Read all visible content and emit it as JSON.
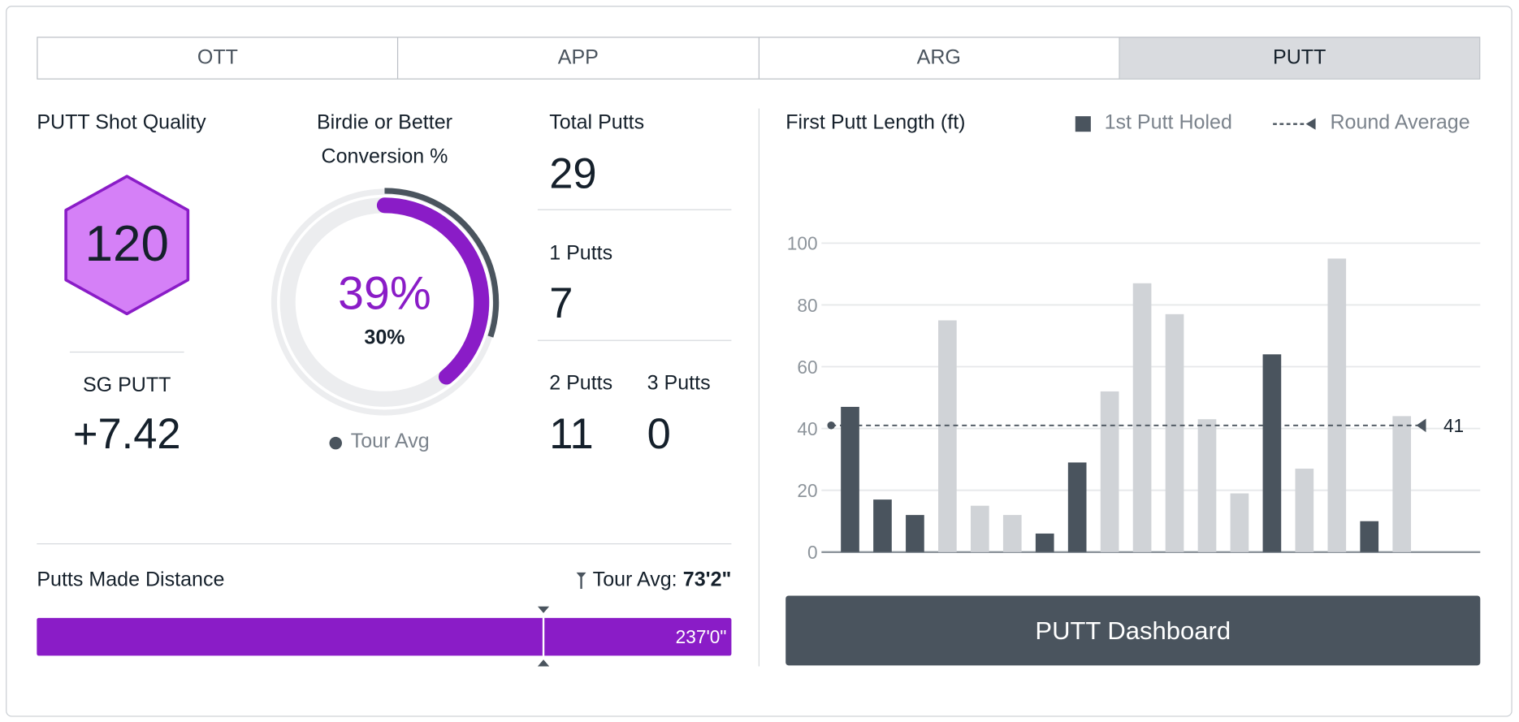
{
  "tabs": [
    {
      "label": "OTT"
    },
    {
      "label": "APP"
    },
    {
      "label": "ARG"
    },
    {
      "label": "PUTT",
      "active": true
    }
  ],
  "shot_quality": {
    "title": "PUTT Shot Quality",
    "value": "120",
    "sg_label": "SG PUTT",
    "sg_value": "+7.42"
  },
  "conversion": {
    "title_line1": "Birdie or Better",
    "title_line2": "Conversion %",
    "value": "39%",
    "tour_value": "30%",
    "value_pct": 39,
    "tour_pct": 30,
    "legend": "Tour Avg"
  },
  "putts": {
    "total_label": "Total Putts",
    "total": "29",
    "one_label": "1 Putts",
    "one": "7",
    "two_label": "2 Putts",
    "two": "11",
    "three_label": "3 Putts",
    "three": "0"
  },
  "made_distance": {
    "title": "Putts Made Distance",
    "tour_label": "Tour Avg:",
    "tour_value": "73'2\"",
    "value": "237'0\"",
    "tour_marker_fraction": 0.73
  },
  "chart_data": {
    "type": "bar",
    "title": "First Putt Length (ft)",
    "legend": [
      {
        "name": "1st Putt Holed",
        "color": "#4a545e"
      },
      {
        "name": "Round Average",
        "color": "#4a545e"
      }
    ],
    "legend_placement": "top-right",
    "ylim": [
      0,
      100
    ],
    "yticks": [
      "0",
      "20",
      "40",
      "60",
      "80",
      "100"
    ],
    "values": [
      47,
      17,
      12,
      75,
      15,
      12,
      6,
      29,
      52,
      87,
      77,
      43,
      19,
      64,
      27,
      95,
      10,
      44
    ],
    "holed": [
      true,
      true,
      true,
      false,
      false,
      false,
      true,
      true,
      false,
      false,
      false,
      false,
      false,
      true,
      false,
      false,
      true,
      false
    ],
    "average": 41,
    "average_label": "41",
    "colors": {
      "holed": "#4a545e",
      "missed": "#d0d3d7"
    }
  },
  "dashboard_button": {
    "label": "PUTT Dashboard"
  }
}
